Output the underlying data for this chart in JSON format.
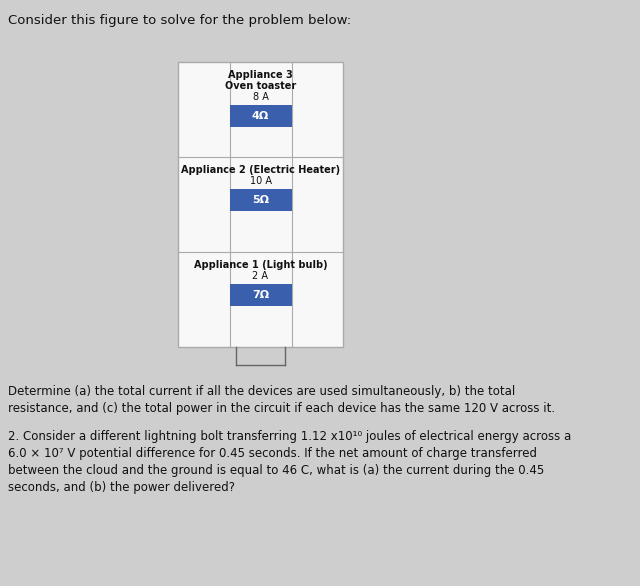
{
  "bg_color": "#cecece",
  "title_text": "Consider this figure to solve for the problem below:",
  "title_fontsize": 9.5,
  "diagram": {
    "appliances": [
      {
        "label_lines": [
          "Appliance 3",
          "Oven toaster",
          "8 A"
        ],
        "label_bold": [
          true,
          true,
          false
        ],
        "box_text": "4Ω",
        "box_color": "#3a5fad"
      },
      {
        "label_lines": [
          "Appliance 2 (Electric Heater)",
          "10 A"
        ],
        "label_bold": [
          true,
          false
        ],
        "box_text": "5Ω",
        "box_color": "#3a5fad"
      },
      {
        "label_lines": [
          "Appliance 1 (Light bulb)",
          "2 A"
        ],
        "label_bold": [
          true,
          false
        ],
        "box_text": "7Ω",
        "box_color": "#3a5fad"
      }
    ]
  },
  "question1": "Determine (a) the total current if all the devices are used simultaneously, b) the total\nresistance, and (c) the total power in the circuit if each device has the same 120 V across it.",
  "question2_parts": [
    "2. Consider a different lightning bolt transferring 1.12 x10",
    "10",
    " joules of electrical energy across a\n6.0 × 10",
    "7",
    " V potential difference for 0.45 seconds. If the net amount of charge transferred\nbetween the cloud and the ground is equal to 46 C, what is (a) the current during the 0.45\nseconds, and (b) the power delivered?"
  ],
  "q_fontsize": 8.5,
  "text_color": "#111111",
  "white_bg": "#f8f8f8",
  "border_color": "#aaaaaa"
}
